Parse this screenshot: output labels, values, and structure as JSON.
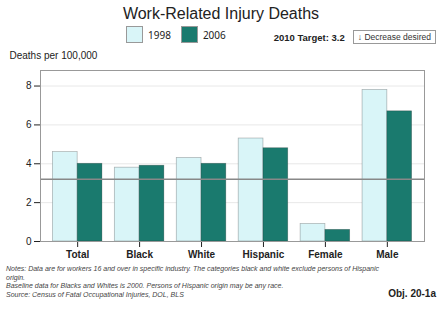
{
  "chart_data": {
    "type": "bar",
    "title": "Work-Related Injury Deaths",
    "ylabel": "Deaths per 100,000",
    "categories": [
      "Total",
      "Black",
      "White",
      "Hispanic",
      "Female",
      "Male"
    ],
    "series": [
      {
        "name": "1998",
        "color": "#d9f5f8",
        "values": [
          4.6,
          3.8,
          4.3,
          5.3,
          0.9,
          7.8
        ]
      },
      {
        "name": "2006",
        "color": "#1a7a6e",
        "values": [
          4.0,
          3.9,
          4.0,
          4.8,
          0.6,
          6.7
        ]
      }
    ],
    "ylim": [
      0,
      8.8
    ],
    "yticks": [
      0,
      2,
      4,
      6,
      8
    ],
    "grid": true,
    "legend": "top",
    "target_line": {
      "value": 3.2,
      "label": "2010 Target: 3.2",
      "color": "#888888"
    },
    "annotations": [
      "↓ Decrease desired",
      "Obj. 20-1a"
    ],
    "notes": [
      "Notes: Data are for workers 16 and over in specific industry. The categories black and white exclude persons of Hispanic origin.",
      "Baseline data for Blacks and Whites is 2000.  Persons of Hispanic origin may be any race.",
      "Source: Census of Fatal Occupational Injuries, DOL, BLS"
    ]
  }
}
